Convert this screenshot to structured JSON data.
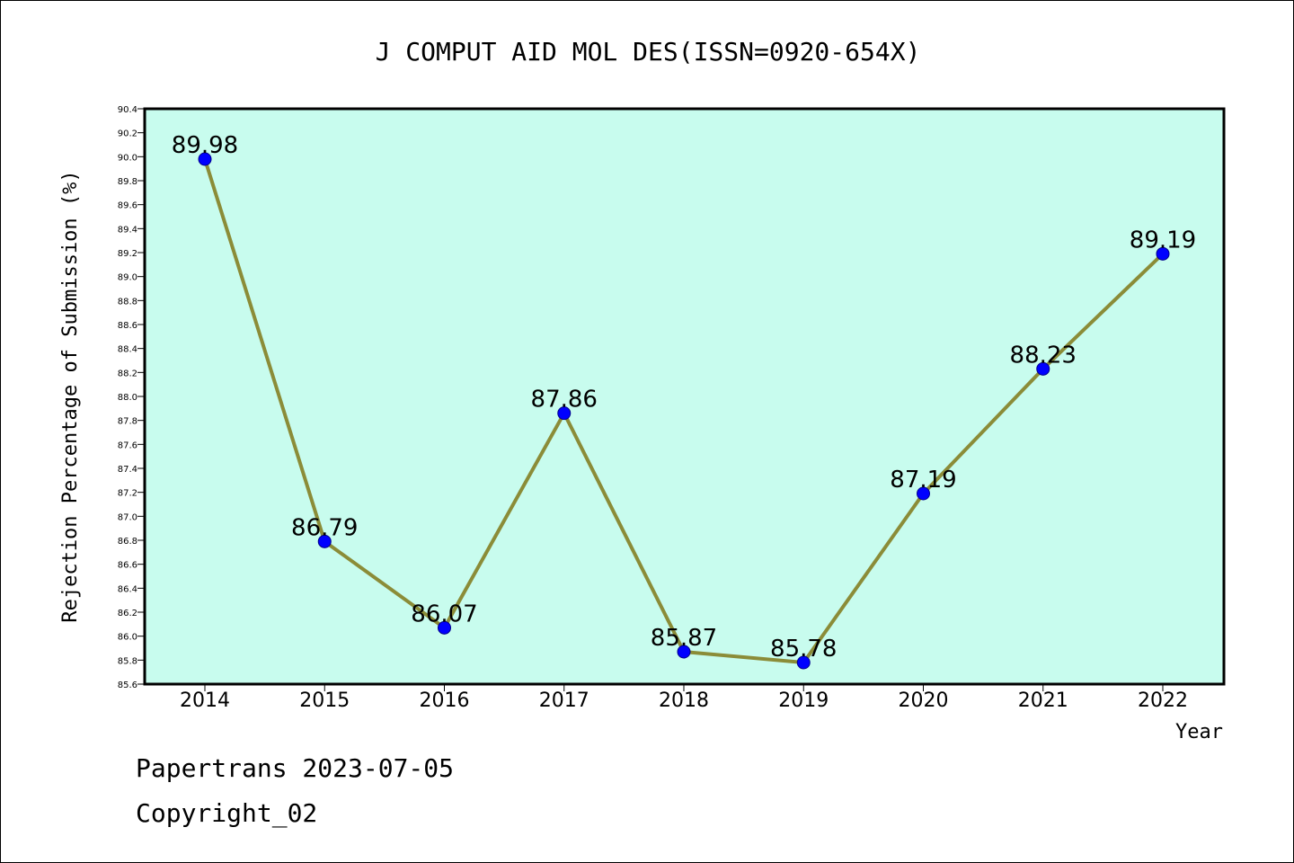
{
  "chart_data": {
    "type": "line",
    "title": "J COMPUT AID MOL DES(ISSN=0920-654X)",
    "xlabel": "Year",
    "ylabel": "Rejection Percentage of Submission (%)",
    "categories": [
      "2014",
      "2015",
      "2016",
      "2017",
      "2018",
      "2019",
      "2020",
      "2021",
      "2022"
    ],
    "series": [
      {
        "values": [
          89.98,
          86.79,
          86.07,
          87.86,
          85.87,
          85.78,
          87.19,
          88.23,
          89.19
        ],
        "labels": [
          "89.98",
          "86.79",
          "86.07",
          "87.86",
          "85.87",
          "85.78",
          "87.19",
          "88.23",
          "89.19"
        ]
      }
    ],
    "ylim": [
      85.6,
      90.4
    ],
    "yticks": [
      "85.6",
      "85.8",
      "86.0",
      "86.2",
      "86.4",
      "86.6",
      "86.8",
      "87.0",
      "87.2",
      "87.4",
      "87.6",
      "87.8",
      "88.0",
      "88.2",
      "88.4",
      "88.6",
      "88.8",
      "89.0",
      "89.2",
      "89.4",
      "89.6",
      "89.8",
      "90.0",
      "90.2",
      "90.4"
    ],
    "grid": false,
    "colors": {
      "plot_background": "#c8fcee",
      "line": "#8b8c38",
      "marker": "#0000ff"
    }
  },
  "footer": {
    "line1": "Papertrans 2023-07-05",
    "line2": "Copyright_02"
  }
}
